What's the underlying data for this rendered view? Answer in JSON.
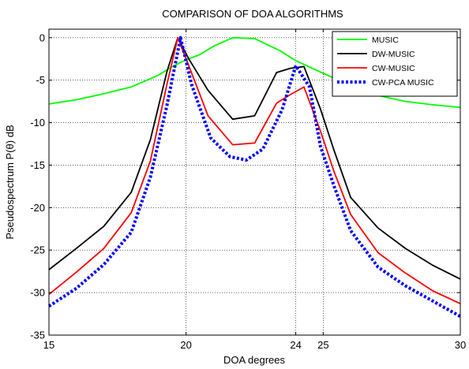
{
  "chart_data": {
    "type": "line",
    "title": "COMPARISON OF DOA ALGORITHMS",
    "xlabel": "DOA degrees",
    "ylabel": "Pseudospectrum P(θ) dB",
    "xlim": [
      15,
      30
    ],
    "ylim": [
      -35,
      1
    ],
    "xticks": [
      15,
      20,
      24,
      25,
      30
    ],
    "yticks": [
      0,
      -5,
      -10,
      -15,
      -20,
      -25,
      -30,
      -35
    ],
    "grid": true,
    "legend_position": "top-right",
    "series": [
      {
        "name": "MUSIC",
        "color": "#00ff00",
        "style": "solid",
        "x": [
          15,
          16,
          17,
          18,
          19,
          19.5,
          20,
          20.5,
          21,
          21.7,
          22.5,
          23.4,
          24,
          25,
          26,
          27,
          28,
          29,
          30
        ],
        "y": [
          -7.8,
          -7.3,
          -6.6,
          -5.8,
          -4.4,
          -3.4,
          -2.6,
          -2.0,
          -1.0,
          0.0,
          -0.1,
          -1.5,
          -2.7,
          -4.2,
          -5.6,
          -6.8,
          -7.5,
          -7.9,
          -8.2
        ]
      },
      {
        "name": "DW-MUSIC",
        "color": "#000000",
        "style": "solid",
        "x": [
          15,
          16,
          17,
          18,
          18.7,
          19.3,
          19.7,
          20.1,
          20.8,
          21.7,
          22.5,
          23.3,
          23.8,
          24.3,
          24.9,
          25.4,
          26,
          27,
          28,
          29,
          30
        ],
        "y": [
          -27.3,
          -24.8,
          -22.2,
          -18.2,
          -12.0,
          -4.0,
          0.0,
          -2.5,
          -6.2,
          -9.6,
          -9.2,
          -4.1,
          -3.6,
          -3.4,
          -8.4,
          -13.3,
          -18.8,
          -22.4,
          -24.8,
          -26.8,
          -28.4
        ]
      },
      {
        "name": "CW-MUSIC",
        "color": "#ff0000",
        "style": "solid",
        "x": [
          15,
          16,
          17,
          18,
          18.7,
          19.3,
          19.7,
          20.1,
          20.8,
          21.7,
          22.5,
          23.3,
          23.8,
          24.3,
          24.9,
          25.4,
          26,
          27,
          28,
          29,
          30
        ],
        "y": [
          -30.2,
          -27.6,
          -24.8,
          -20.6,
          -14.5,
          -5.5,
          0.0,
          -3.3,
          -9.2,
          -12.6,
          -12.4,
          -7.7,
          -6.7,
          -5.8,
          -11.0,
          -15.8,
          -20.8,
          -25.3,
          -27.7,
          -29.8,
          -31.3
        ]
      },
      {
        "name": "CW-PCA MUSIC",
        "color": "#0000ff",
        "style": "dotted",
        "x": [
          15,
          16,
          17,
          18,
          18.7,
          19.3,
          19.8,
          20.2,
          20.9,
          21.6,
          22.2,
          22.8,
          23.5,
          24.0,
          24.5,
          24.9,
          25.4,
          26,
          27,
          28,
          29,
          30
        ],
        "y": [
          -31.6,
          -29.5,
          -26.7,
          -22.9,
          -16.4,
          -8.0,
          0.0,
          -5.5,
          -11.8,
          -14.0,
          -14.4,
          -13.1,
          -8.5,
          -3.3,
          -5.8,
          -12.8,
          -17.5,
          -22.7,
          -27.0,
          -29.2,
          -31.0,
          -32.8
        ]
      }
    ]
  }
}
